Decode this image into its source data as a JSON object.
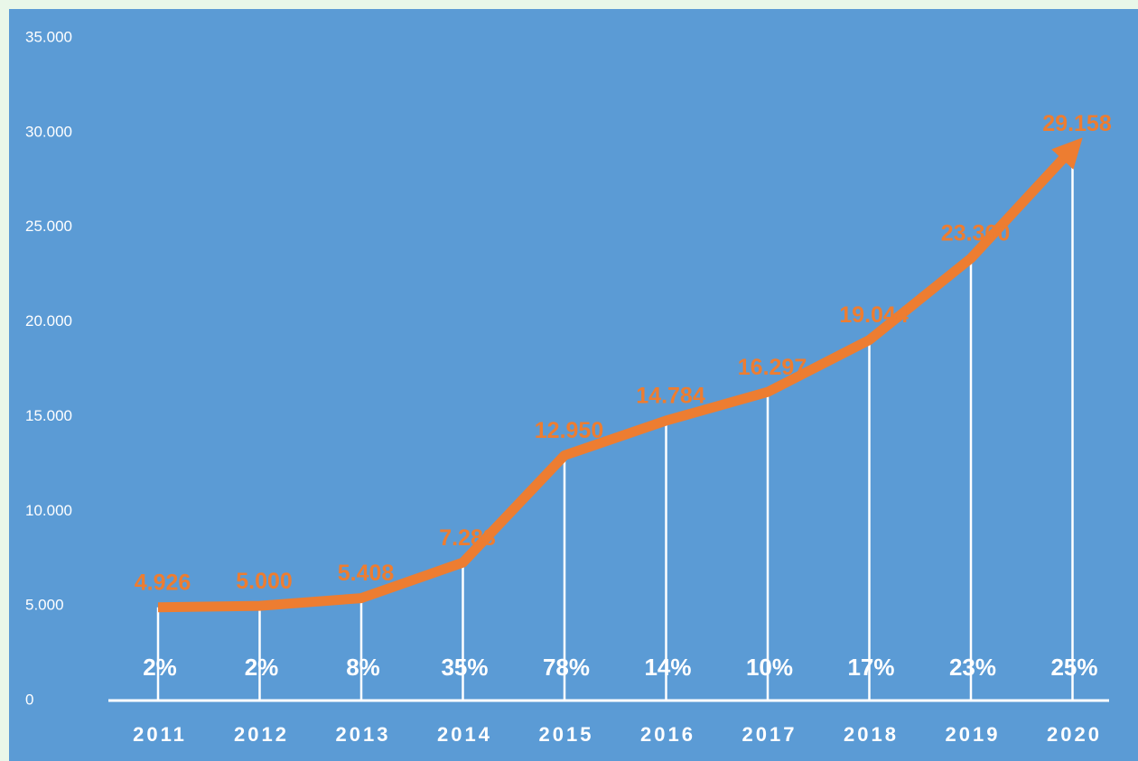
{
  "chart_data": {
    "type": "line",
    "categories": [
      "2011",
      "2012",
      "2013",
      "2014",
      "2015",
      "2016",
      "2017",
      "2018",
      "2019",
      "2020"
    ],
    "series": [
      {
        "color": "#ed7d31",
        "values": [
          4926,
          5000,
          5408,
          7288,
          12950,
          14784,
          16297,
          19044,
          23360,
          29158
        ],
        "value_labels": [
          "4.926",
          "5.000",
          "5.408",
          "7.288",
          "12.950",
          "14.784",
          "16.297",
          "19.044",
          "23.360",
          "29.158"
        ]
      }
    ],
    "growth_labels": [
      "2%",
      "2%",
      "8%",
      "35%",
      "78%",
      "14%",
      "10%",
      "17%",
      "23%",
      "25%"
    ],
    "ylim": [
      0,
      35000
    ],
    "yticks": [
      0,
      {
        "value": 5000,
        "label": "5.000"
      },
      {
        "value": 10000,
        "label": "10.000"
      },
      {
        "value": 15000,
        "label": "15.000"
      },
      {
        "value": 20000,
        "label": "20.000"
      },
      {
        "value": 25000,
        "label": "25.000"
      },
      {
        "value": 30000,
        "label": "30.000"
      },
      {
        "value": 35000,
        "label": "35.000"
      }
    ],
    "grid": false
  }
}
